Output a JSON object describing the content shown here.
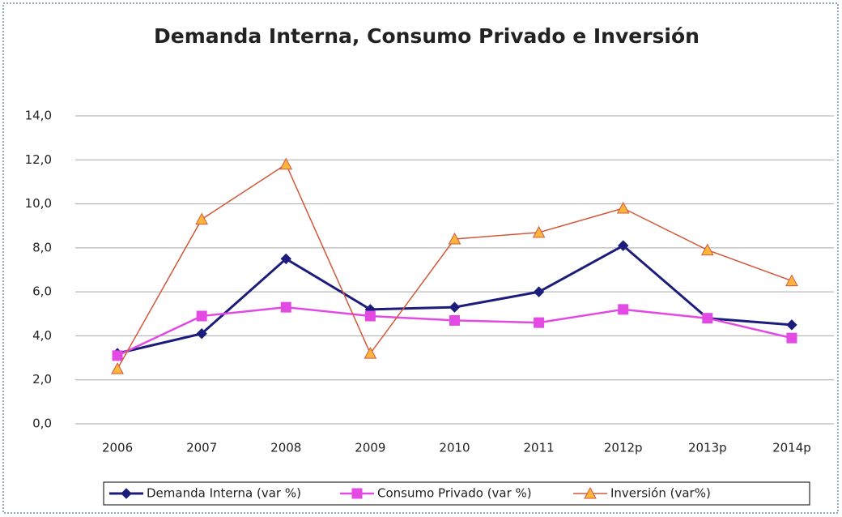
{
  "chart_data": {
    "type": "line",
    "title": "Demanda Interna, Consumo Privado e Inversión",
    "categories": [
      "2006",
      "2007",
      "2008",
      "2009",
      "2010",
      "2011",
      "2012p",
      "2013p",
      "2014p"
    ],
    "series": [
      {
        "name": "Demanda Interna (var %)",
        "color": "#1c1c7c",
        "marker": "diamond",
        "marker_fill": "#1c1c7c",
        "values": [
          3.2,
          4.1,
          7.5,
          5.2,
          5.3,
          6.0,
          8.1,
          4.8,
          4.5
        ]
      },
      {
        "name": "Consumo Privado (var %)",
        "color": "#e34ae3",
        "marker": "square",
        "marker_fill": "#e34ae3",
        "values": [
          3.1,
          4.9,
          5.3,
          4.9,
          4.7,
          4.6,
          5.2,
          4.8,
          3.9
        ]
      },
      {
        "name": "Inversión (var%)",
        "color": "#d2583a",
        "marker": "triangle",
        "marker_fill": "#ffb43c",
        "values": [
          2.5,
          9.3,
          11.8,
          3.2,
          8.4,
          8.7,
          9.8,
          7.9,
          6.5
        ]
      }
    ],
    "ylim": [
      0,
      14
    ],
    "yticks": [
      {
        "value": 0,
        "label": "0,0"
      },
      {
        "value": 2,
        "label": "2,0"
      },
      {
        "value": 4,
        "label": "4,0"
      },
      {
        "value": 6,
        "label": "6,0"
      },
      {
        "value": 8,
        "label": "8,0"
      },
      {
        "value": 10,
        "label": "10,0"
      },
      {
        "value": 12,
        "label": "12,0"
      },
      {
        "value": 14,
        "label": "14,0"
      }
    ],
    "grid": true,
    "legend": "bottom"
  }
}
